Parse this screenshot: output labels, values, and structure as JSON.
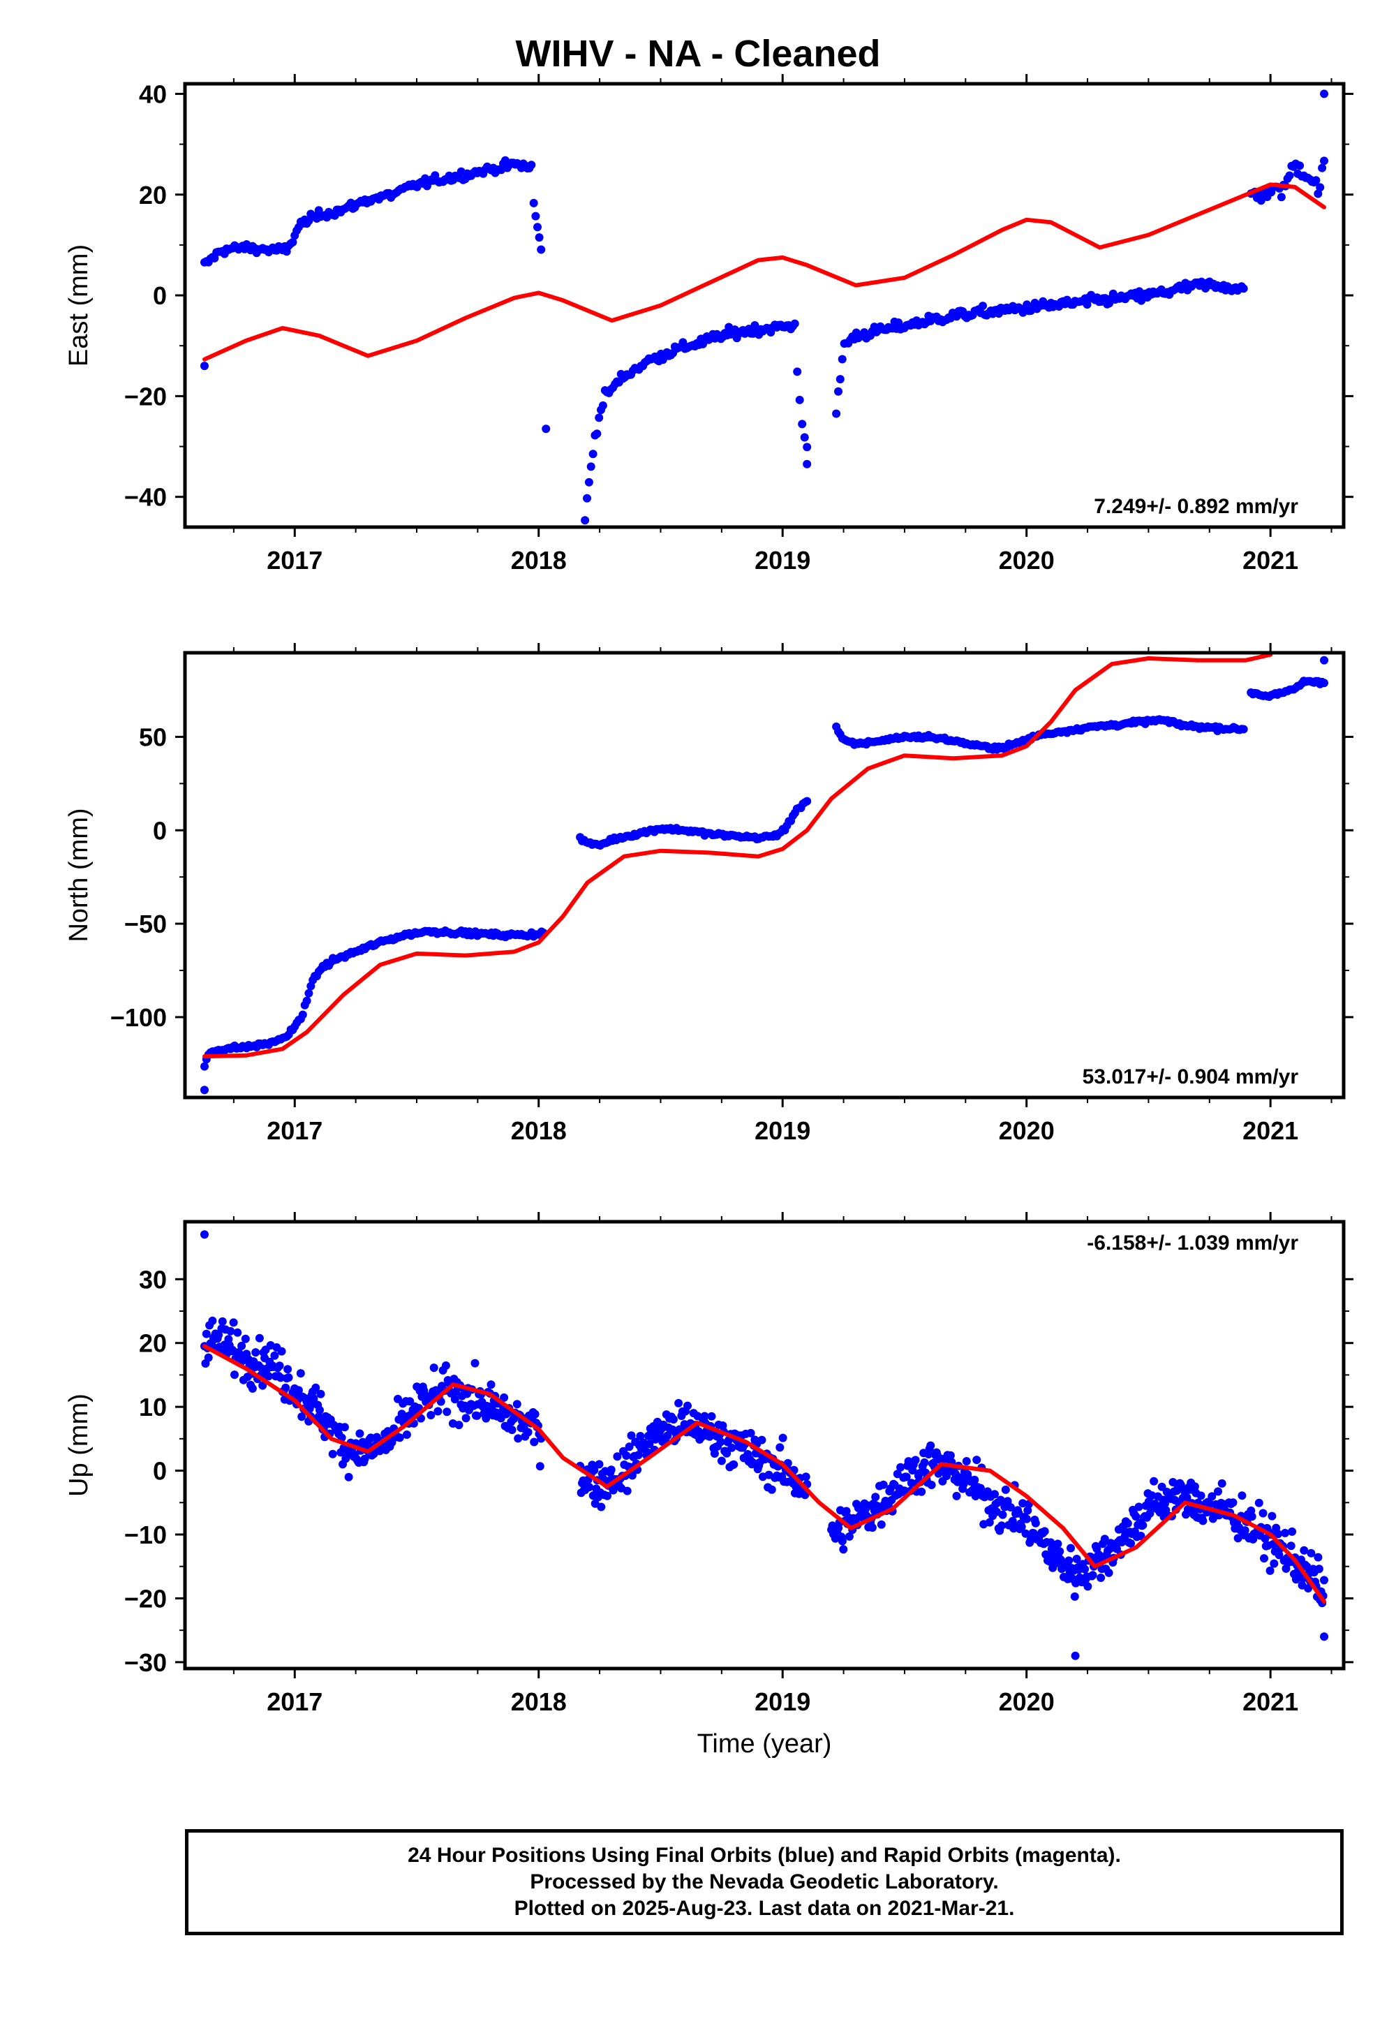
{
  "title": "WIHV  - NA - Cleaned",
  "caption": [
    "24 Hour Positions Using Final Orbits (blue) and Rapid Orbits (magenta).",
    "Processed by the Nevada Geodetic Laboratory.",
    "Plotted on 2025-Aug-23. Last data on 2021-Mar-21."
  ],
  "colors": {
    "data": "#0000ff",
    "model": "#ff0000",
    "axis": "#000000"
  },
  "chart_data": [
    {
      "type": "scatter",
      "ylabel": "East (mm)",
      "xlabel": "",
      "xlim": [
        2016.55,
        2021.3
      ],
      "ylim": [
        -46,
        42
      ],
      "xticks": [
        2017,
        2018,
        2019,
        2020,
        2021
      ],
      "yticks": [
        -40,
        -20,
        0,
        20,
        40
      ],
      "rate": "7.249+/- 0.892 mm/yr",
      "rate_position": "bottom-right",
      "data_segments": [
        {
          "x": [
            2016.63,
            2016.7,
            2016.8,
            2016.9,
            2016.97,
            2017.02,
            2017.1,
            2017.2,
            2017.3,
            2017.4,
            2017.5,
            2017.6,
            2017.7,
            2017.8,
            2017.9,
            2017.97
          ],
          "y": [
            6,
            9,
            9.5,
            9,
            9,
            14,
            16,
            17,
            19,
            20,
            22,
            23,
            24,
            25,
            26,
            25.5
          ],
          "noise": 1.0,
          "density": 4
        },
        {
          "x": [
            2017.98,
            2018.0,
            2018.01
          ],
          "y": [
            18,
            12,
            9
          ],
          "noise": 1.0,
          "density": 3
        },
        {
          "x": [
            2018.19,
            2018.2,
            2018.23,
            2018.27,
            2018.35,
            2018.45,
            2018.55,
            2018.65,
            2018.75,
            2018.85,
            2018.95,
            2019.05
          ],
          "y": [
            -44,
            -40,
            -28,
            -20,
            -16,
            -13,
            -11,
            -9.5,
            -8,
            -7,
            -6.5,
            -6
          ],
          "noise": 1.2,
          "density": 4
        },
        {
          "x": [
            2019.06,
            2019.08,
            2019.1
          ],
          "y": [
            -15,
            -25,
            -30
          ],
          "noise": 1.5,
          "density": 3
        },
        {
          "x": [
            2019.22,
            2019.25,
            2019.3,
            2019.4,
            2019.5,
            2019.6,
            2019.7,
            2019.8,
            2019.9,
            2020.0,
            2020.1,
            2020.2,
            2020.3,
            2020.4,
            2020.5,
            2020.6,
            2020.7,
            2020.8,
            2020.89
          ],
          "y": [
            -24,
            -10,
            -8,
            -7,
            -6,
            -5,
            -4,
            -3.5,
            -3,
            -2.5,
            -2,
            -1.5,
            -1,
            -0.5,
            0,
            1,
            2,
            2,
            1
          ],
          "noise": 1.2,
          "density": 4
        },
        {
          "x": [
            2020.92,
            2021.0,
            2021.05,
            2021.1,
            2021.15,
            2021.2,
            2021.22
          ],
          "y": [
            20,
            20.5,
            21,
            26,
            24,
            21,
            26
          ],
          "noise": 1.8,
          "density": 4
        }
      ],
      "outliers": [
        {
          "x": 2016.63,
          "y": -14
        },
        {
          "x": 2018.03,
          "y": -26.5
        },
        {
          "x": 2019.1,
          "y": -33.5
        },
        {
          "x": 2021.22,
          "y": 40
        }
      ],
      "model": {
        "x": [
          2016.63,
          2016.8,
          2016.95,
          2017.1,
          2017.3,
          2017.5,
          2017.7,
          2017.9,
          2018.0,
          2018.1,
          2018.3,
          2018.5,
          2018.7,
          2018.9,
          2019.0,
          2019.1,
          2019.3,
          2019.5,
          2019.7,
          2019.9,
          2020.0,
          2020.1,
          2020.3,
          2020.5,
          2020.7,
          2020.9,
          2021.0,
          2021.1,
          2021.22
        ],
        "y": [
          -12.7,
          -9,
          -6.5,
          -8,
          -12,
          -9,
          -4.5,
          -0.5,
          0.5,
          -1,
          -5,
          -2,
          2.5,
          7,
          7.5,
          6,
          2,
          3.5,
          8,
          13,
          15,
          14.5,
          9.5,
          12,
          16,
          20,
          22,
          21.5,
          17.5
        ]
      }
    },
    {
      "type": "scatter",
      "ylabel": "North (mm)",
      "xlabel": "",
      "xlim": [
        2016.55,
        2021.3
      ],
      "ylim": [
        -143,
        95
      ],
      "xticks": [
        2017,
        2018,
        2019,
        2020,
        2021
      ],
      "yticks": [
        -100,
        -50,
        0,
        50
      ],
      "rate": "53.017+/- 0.904 mm/yr",
      "rate_position": "bottom-right",
      "data_segments": [
        {
          "x": [
            2016.63,
            2016.65,
            2016.7,
            2016.8,
            2016.9,
            2016.97,
            2017.03,
            2017.06,
            2017.1,
            2017.15,
            2017.25,
            2017.35,
            2017.45,
            2017.55,
            2017.7,
            2017.85,
            2017.95,
            2018.02
          ],
          "y": [
            -126,
            -119,
            -117,
            -116,
            -114,
            -110,
            -100,
            -85,
            -75,
            -70,
            -65,
            -60,
            -56,
            -54,
            -55,
            -56,
            -56,
            -55
          ],
          "noise": 1.3,
          "density": 4
        },
        {
          "x": [
            2018.17,
            2018.2,
            2018.25,
            2018.3,
            2018.4,
            2018.5,
            2018.6,
            2018.7,
            2018.8,
            2018.9,
            2018.97,
            2019.02,
            2019.05,
            2019.1
          ],
          "y": [
            -4,
            -7,
            -8,
            -5,
            -2,
            1,
            0,
            -2,
            -3,
            -4,
            -3,
            2,
            10,
            16
          ],
          "noise": 1.2,
          "density": 4
        },
        {
          "x": [
            2019.22,
            2019.25,
            2019.3,
            2019.4,
            2019.5,
            2019.6,
            2019.7,
            2019.8,
            2019.9,
            2019.97,
            2020.05,
            2020.15,
            2020.25,
            2020.4,
            2020.55,
            2020.65,
            2020.75,
            2020.89
          ],
          "y": [
            55,
            48,
            46,
            48,
            50,
            50,
            48,
            45,
            44,
            47,
            51,
            53,
            55,
            57,
            59,
            56,
            55,
            54
          ],
          "noise": 1.2,
          "density": 4
        },
        {
          "x": [
            2020.92,
            2020.98,
            2021.05,
            2021.1,
            2021.15,
            2021.22
          ],
          "y": [
            74,
            72,
            73,
            76,
            80,
            79
          ],
          "noise": 1.5,
          "density": 4
        }
      ],
      "outliers": [
        {
          "x": 2016.63,
          "y": -139
        },
        {
          "x": 2021.22,
          "y": 91
        }
      ],
      "model": {
        "x": [
          2016.63,
          2016.8,
          2016.95,
          2017.05,
          2017.2,
          2017.35,
          2017.5,
          2017.7,
          2017.9,
          2018.0,
          2018.1,
          2018.2,
          2018.35,
          2018.5,
          2018.7,
          2018.9,
          2019.0,
          2019.1,
          2019.2,
          2019.35,
          2019.5,
          2019.7,
          2019.9,
          2020.0,
          2020.1,
          2020.2,
          2020.35,
          2020.5,
          2020.7,
          2020.9,
          2021.0
        ],
        "y": [
          -121,
          -120.5,
          -117,
          -108,
          -88,
          -72,
          -66,
          -67,
          -65,
          -60,
          -46,
          -28,
          -14,
          -11,
          -12,
          -14,
          -10,
          0,
          17,
          33,
          40,
          38.5,
          40,
          45,
          58,
          75,
          89,
          92,
          91,
          91,
          94
        ]
      }
    },
    {
      "type": "scatter",
      "ylabel": "Up (mm)",
      "xlabel": "Time (year)",
      "xlim": [
        2016.55,
        2021.3
      ],
      "ylim": [
        -31,
        39
      ],
      "xticks": [
        2017,
        2018,
        2019,
        2020,
        2021
      ],
      "yticks": [
        -30,
        -20,
        -10,
        0,
        10,
        20,
        30
      ],
      "rate": "-6.158+/- 1.039 mm/yr",
      "rate_position": "top-right",
      "data_segments": [
        {
          "x": [
            2016.63,
            2016.7,
            2016.8,
            2016.9,
            2017.0,
            2017.1,
            2017.2,
            2017.3,
            2017.4,
            2017.5,
            2017.6,
            2017.7,
            2017.8,
            2017.9,
            2018.01
          ],
          "y": [
            21,
            20,
            18,
            17,
            13,
            9,
            4,
            3,
            5,
            10,
            12,
            12,
            10,
            8,
            6
          ],
          "noise": 4.2,
          "density": 8
        },
        {
          "x": [
            2018.17,
            2018.25,
            2018.35,
            2018.45,
            2018.55,
            2018.65,
            2018.75,
            2018.85,
            2018.95,
            2019.05,
            2019.1
          ],
          "y": [
            -1,
            -2,
            0,
            5,
            7,
            7,
            5,
            3,
            1,
            -1,
            -3
          ],
          "noise": 4.0,
          "density": 8
        },
        {
          "x": [
            2019.2,
            2019.3,
            2019.4,
            2019.5,
            2019.6,
            2019.7,
            2019.8,
            2019.9,
            2020.0,
            2020.1,
            2020.2,
            2020.3,
            2020.4,
            2020.5,
            2020.6,
            2020.7,
            2020.8,
            2020.9,
            2021.0,
            2021.1,
            2021.22
          ],
          "y": [
            -10,
            -8,
            -5,
            -1,
            1,
            0,
            -3,
            -6,
            -8,
            -13,
            -16,
            -14,
            -10,
            -6,
            -4,
            -5,
            -6,
            -8,
            -11,
            -14,
            -19
          ],
          "noise": 4.2,
          "density": 8
        }
      ],
      "outliers": [
        {
          "x": 2016.63,
          "y": 37
        },
        {
          "x": 2020.2,
          "y": -29
        },
        {
          "x": 2021.22,
          "y": -26
        }
      ],
      "model": {
        "x": [
          2016.63,
          2016.8,
          2017.0,
          2017.15,
          2017.3,
          2017.45,
          2017.65,
          2017.8,
          2018.0,
          2018.1,
          2018.28,
          2018.45,
          2018.65,
          2018.85,
          2019.0,
          2019.15,
          2019.28,
          2019.45,
          2019.65,
          2019.85,
          2020.0,
          2020.15,
          2020.28,
          2020.45,
          2020.65,
          2020.85,
          2021.0,
          2021.1,
          2021.22
        ],
        "y": [
          19.5,
          16,
          11,
          5,
          3,
          7,
          13.5,
          12,
          6.5,
          2,
          -2.5,
          2,
          7.5,
          4.5,
          1,
          -5,
          -9,
          -6,
          1,
          0,
          -4,
          -9,
          -15,
          -12,
          -5,
          -7,
          -10,
          -14,
          -20.5
        ]
      }
    }
  ]
}
